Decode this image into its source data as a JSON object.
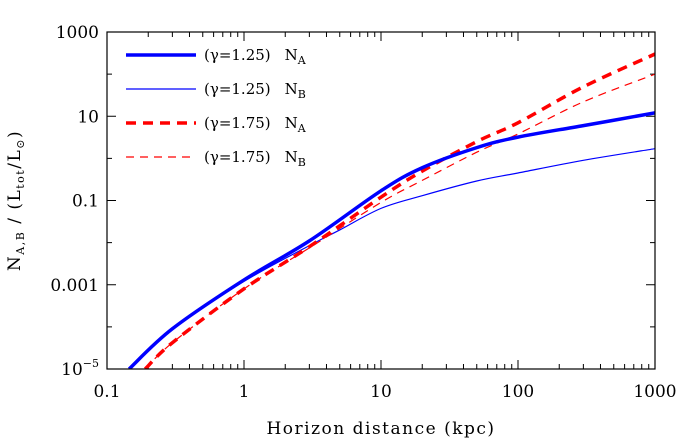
{
  "chart_data": {
    "type": "line",
    "xscale": "log",
    "yscale": "log",
    "xlabel": "Horizon distance  (kpc)",
    "ylabel": {
      "main": "N",
      "main_sub": "A,B",
      "sep": " / (L",
      "tot_sub": "tot",
      "mid": "/L",
      "star_sub": "⊙",
      "end": ")"
    },
    "xlim": [
      0.1,
      1000
    ],
    "ylim": [
      1e-05,
      1000
    ],
    "x_ticks": [
      {
        "value": 0.1,
        "label": "0.1"
      },
      {
        "value": 1,
        "label": "1"
      },
      {
        "value": 10,
        "label": "10"
      },
      {
        "value": 100,
        "label": "100"
      },
      {
        "value": 1000,
        "label": "1000"
      }
    ],
    "y_ticks": [
      {
        "value": 1e-05,
        "label": "10",
        "sup": "−5"
      },
      {
        "value": 0.001,
        "label": "0.001",
        "sup": ""
      },
      {
        "value": 0.1,
        "label": "0.1",
        "sup": ""
      },
      {
        "value": 10,
        "label": "10",
        "sup": ""
      },
      {
        "value": 1000,
        "label": "1000",
        "sup": ""
      }
    ],
    "series": [
      {
        "id": "g125-NA",
        "gamma_label": "(γ=1.25)",
        "name": "N",
        "name_sub": "A",
        "color": "#0000ff",
        "width": 3.5,
        "dash": "",
        "points": [
          [
            0.145,
            1e-05
          ],
          [
            0.3,
            9e-05
          ],
          [
            1,
            0.0013
          ],
          [
            3,
            0.011
          ],
          [
            10,
            0.17
          ],
          [
            20,
            0.6
          ],
          [
            50,
            1.8
          ],
          [
            100,
            3.2
          ],
          [
            300,
            6.0
          ],
          [
            1000,
            12.0
          ]
        ]
      },
      {
        "id": "g125-NB",
        "gamma_label": "(γ=1.25)",
        "name": "N",
        "name_sub": "B",
        "color": "#0000ff",
        "width": 1.2,
        "dash": "",
        "points": [
          [
            0.145,
            1e-05
          ],
          [
            0.3,
            9e-05
          ],
          [
            1,
            0.0012
          ],
          [
            3,
            0.0085
          ],
          [
            5,
            0.02
          ],
          [
            10,
            0.065
          ],
          [
            20,
            0.13
          ],
          [
            50,
            0.29
          ],
          [
            100,
            0.45
          ],
          [
            300,
            0.9
          ],
          [
            1000,
            1.7
          ]
        ]
      },
      {
        "id": "g175-NA",
        "gamma_label": "(γ=1.75)",
        "name": "N",
        "name_sub": "A",
        "color": "#ff0000",
        "width": 3.5,
        "dash": "10,7",
        "points": [
          [
            0.19,
            1e-05
          ],
          [
            0.3,
            4.2e-05
          ],
          [
            1,
            0.0008
          ],
          [
            3,
            0.008
          ],
          [
            10,
            0.12
          ],
          [
            20,
            0.5
          ],
          [
            50,
            2.5
          ],
          [
            100,
            7.0
          ],
          [
            300,
            50
          ],
          [
            1000,
            300
          ]
        ]
      },
      {
        "id": "g175-NB",
        "gamma_label": "(γ=1.75)",
        "name": "N",
        "name_sub": "B",
        "color": "#ff0000",
        "width": 1.2,
        "dash": "8,6",
        "points": [
          [
            0.19,
            1e-05
          ],
          [
            0.3,
            4.2e-05
          ],
          [
            1,
            0.0008
          ],
          [
            3,
            0.0075
          ],
          [
            10,
            0.09
          ],
          [
            20,
            0.3
          ],
          [
            50,
            1.4
          ],
          [
            100,
            3.8
          ],
          [
            300,
            22
          ],
          [
            1000,
            100
          ]
        ]
      }
    ],
    "legend_location": "top-left"
  }
}
